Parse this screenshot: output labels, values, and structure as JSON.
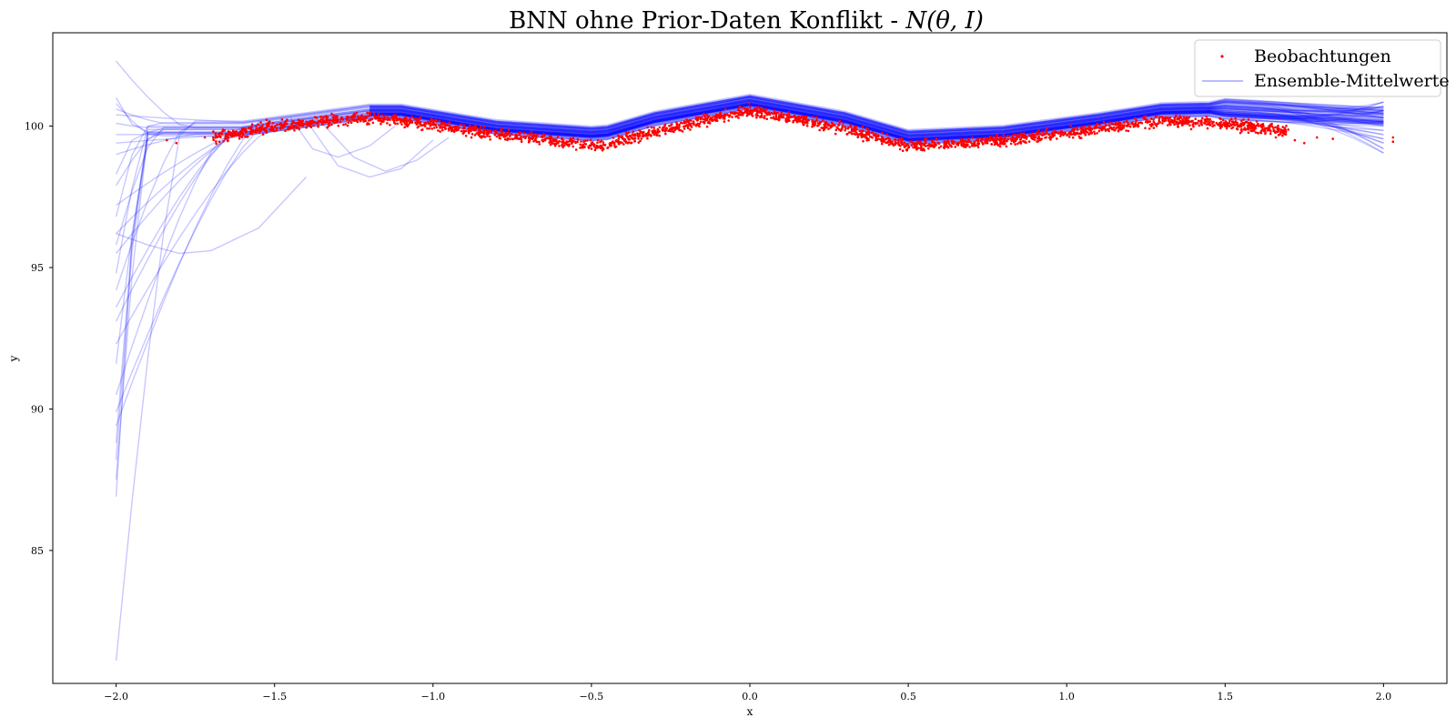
{
  "chart_data": {
    "type": "line",
    "title": "BNN ohne Prior-Daten Konflikt - N(θ, I)",
    "title_text": "BNN ohne Prior-Daten Konflikt - ",
    "title_math": "N(θ, I)",
    "xlabel": "x",
    "ylabel": "y",
    "xlim": [
      -2.2,
      2.2
    ],
    "ylim": [
      80.3,
      103.3
    ],
    "xticks": [
      -2.0,
      -1.5,
      -1.0,
      -0.5,
      0.0,
      0.5,
      1.0,
      1.5,
      2.0
    ],
    "xtick_labels": [
      "−2.0",
      "−1.5",
      "−1.0",
      "−0.5",
      "0.0",
      "0.5",
      "1.0",
      "1.5",
      "2.0"
    ],
    "yticks": [
      85,
      90,
      95,
      100
    ],
    "ytick_labels": [
      "85",
      "90",
      "95",
      "100"
    ],
    "grid": false,
    "legend": {
      "position": "top-right",
      "entries": [
        {
          "label": "Beobachtungen",
          "kind": "scatter",
          "color": "#ff0000"
        },
        {
          "label": "Ensemble-Mittelwerte",
          "kind": "line",
          "color": "#0000ff"
        }
      ]
    },
    "observations": {
      "name": "Beobachtungen",
      "color": "#ff0000",
      "x_range": [
        -1.85,
        2.03
      ],
      "trend": {
        "x": [
          -1.8,
          -1.5,
          -1.2,
          -1.1,
          -0.8,
          -0.47,
          -0.3,
          0.0,
          0.3,
          0.5,
          0.8,
          1.1,
          1.3,
          1.5,
          1.7,
          2.0
        ],
        "y": [
          99.4,
          100.0,
          100.3,
          100.2,
          99.7,
          99.3,
          99.8,
          100.55,
          99.9,
          99.3,
          99.5,
          99.9,
          100.2,
          100.1,
          99.8,
          99.5
        ]
      },
      "noise_sd": 0.12,
      "sparse_points": [
        {
          "x": -1.84,
          "y": 99.5
        },
        {
          "x": -1.81,
          "y": 99.4
        },
        {
          "x": -1.72,
          "y": 99.6
        },
        {
          "x": -1.62,
          "y": 99.8
        },
        {
          "x": 1.66,
          "y": 99.6
        },
        {
          "x": 1.72,
          "y": 99.5
        },
        {
          "x": 1.75,
          "y": 99.4
        },
        {
          "x": 1.79,
          "y": 99.6
        },
        {
          "x": 1.84,
          "y": 99.55
        },
        {
          "x": 2.03,
          "y": 99.6
        },
        {
          "x": 2.03,
          "y": 99.45
        }
      ]
    },
    "ensemble": {
      "name": "Ensemble-Mittelwerte",
      "color": "#0000ff",
      "opacity": 0.22,
      "mean_x": [
        -1.6,
        -1.2,
        -1.1,
        -0.8,
        -0.47,
        -0.3,
        0.0,
        0.3,
        0.5,
        0.8,
        1.1,
        1.3,
        1.5,
        2.0
      ],
      "mean_y": [
        99.95,
        100.55,
        100.55,
        100.0,
        99.75,
        100.3,
        100.9,
        100.3,
        99.65,
        99.8,
        100.25,
        100.6,
        100.65,
        100.35
      ],
      "left_end_values": [
        102.3,
        101.0,
        100.8,
        100.6,
        100.4,
        100.1,
        99.7,
        99.4,
        99.0,
        98.3,
        97.9,
        97.2,
        96.8,
        96.2,
        95.8,
        95.5,
        94.8,
        94.2,
        93.6,
        93.1,
        92.3,
        91.6,
        90.5,
        89.9,
        89.4,
        88.8,
        88.2,
        87.5,
        86.9,
        81.1
      ],
      "right_end_values": [
        100.85,
        100.7,
        100.55,
        100.45,
        100.3,
        100.15,
        100.0,
        99.85,
        99.7,
        99.55,
        99.4,
        99.2,
        99.05
      ],
      "dip_curves": [
        {
          "x": [
            -2.0,
            -1.9,
            -1.8,
            -1.7,
            -1.55,
            -1.4
          ],
          "y": [
            96.2,
            95.8,
            95.5,
            95.6,
            96.4,
            98.2
          ]
        },
        {
          "x": [
            -1.4,
            -1.3,
            -1.2,
            -1.1,
            -1.0
          ],
          "y": [
            100.2,
            98.6,
            98.2,
            98.5,
            99.5
          ]
        },
        {
          "x": [
            -1.35,
            -1.25,
            -1.15,
            -1.05,
            -0.95
          ],
          "y": [
            100.1,
            98.9,
            98.4,
            98.8,
            99.6
          ]
        },
        {
          "x": [
            -1.45,
            -1.38,
            -1.3,
            -1.2,
            -1.12
          ],
          "y": [
            100.3,
            99.2,
            98.9,
            99.3,
            100.0
          ]
        }
      ]
    }
  }
}
